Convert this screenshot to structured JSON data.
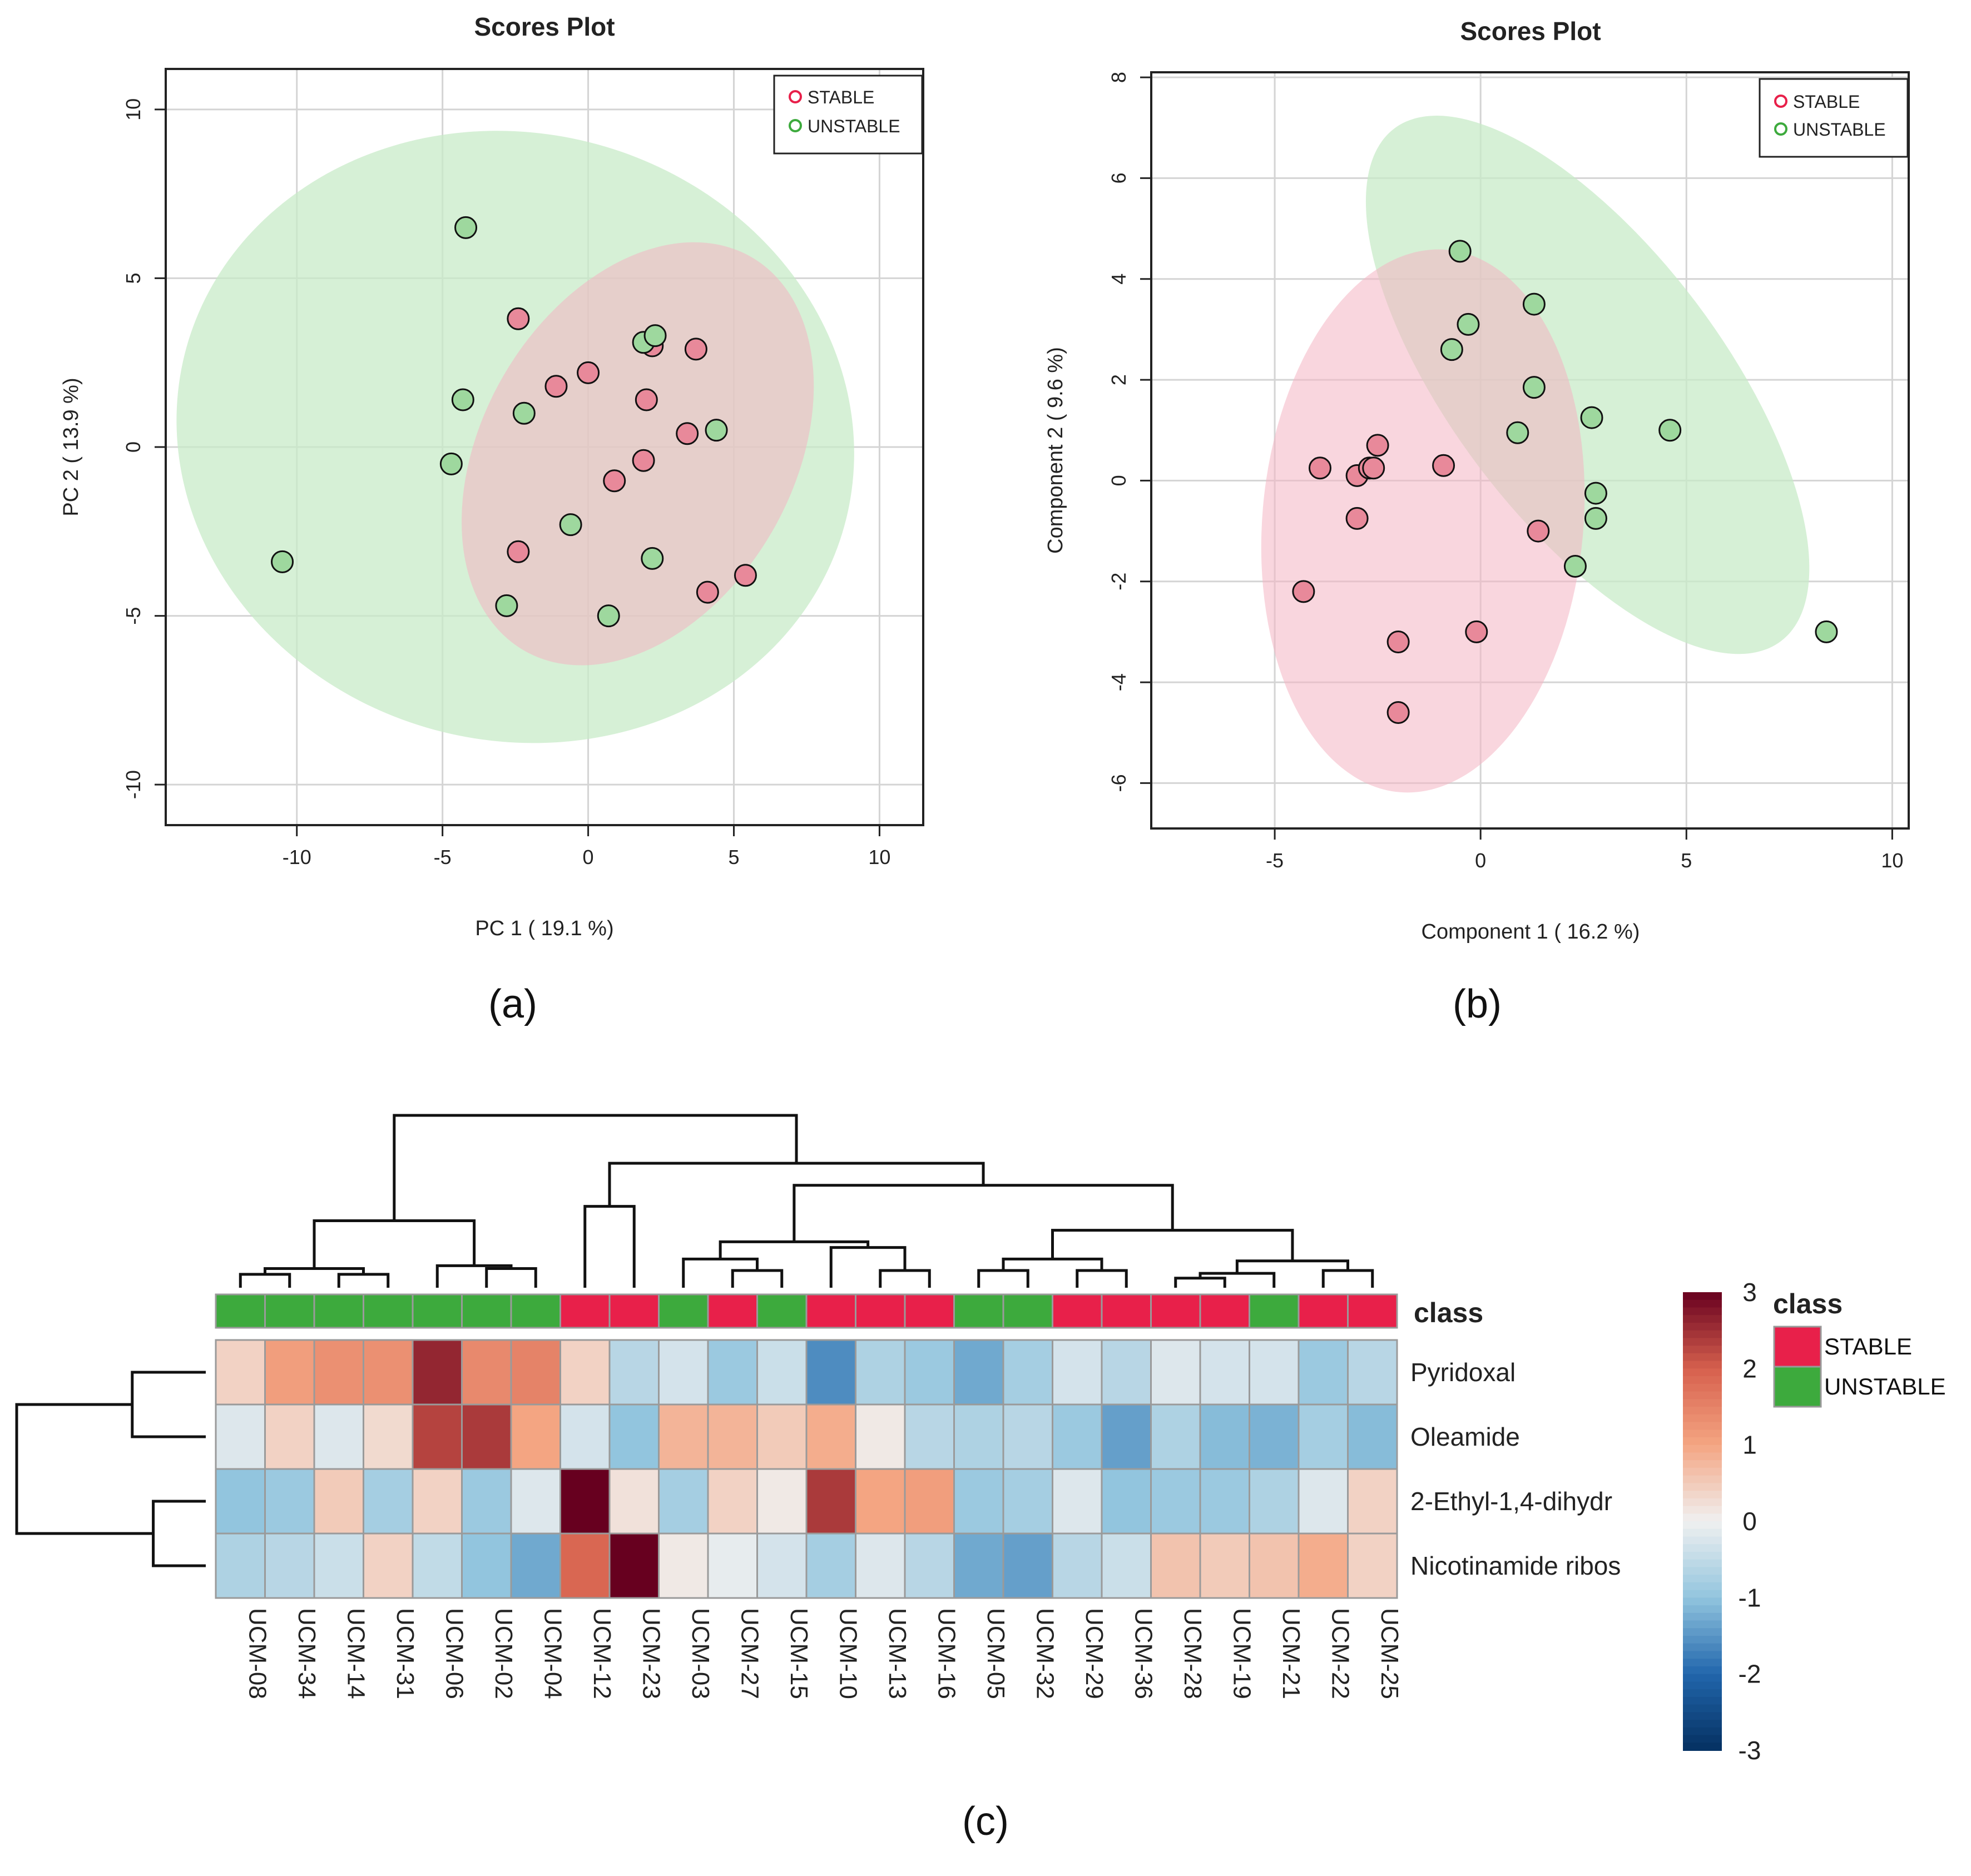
{
  "colors": {
    "stable": "#E8204A",
    "unstable": "#3DAA3D",
    "stable_point": "#E8899A",
    "unstable_point": "#9ED89E",
    "stable_ellipse": "#F4B4C2",
    "unstable_ellipse": "#C8EBC8",
    "overlap": "#D2C6B6"
  },
  "panel_labels": {
    "a": "(a)",
    "b": "(b)",
    "c": "(c)"
  },
  "chart_data": [
    {
      "id": "a",
      "type": "scatter",
      "title": "Scores Plot",
      "xlabel": "PC 1 ( 19.1 %)",
      "ylabel": "PC 2 ( 13.9 %)",
      "xlim": [
        -14.5,
        11.5
      ],
      "ylim": [
        -11.2,
        11.2
      ],
      "xticks": [
        -10,
        -5,
        0,
        5,
        10
      ],
      "yticks": [
        -10,
        -5,
        0,
        5,
        10
      ],
      "xtick_labels": [
        "-10",
        "-5",
        "0",
        "5",
        "10"
      ],
      "ytick_labels": [
        "-10",
        "-5",
        "0",
        "5",
        "10"
      ],
      "grid_x": [
        -10,
        -5,
        0,
        5,
        10
      ],
      "grid_y": [
        -10,
        -5,
        0,
        5,
        10
      ],
      "legend": {
        "position": "top-right",
        "entries": [
          "STABLE",
          "UNSTABLE"
        ]
      },
      "ellipses": [
        {
          "series": "UNSTABLE",
          "cx": -2.5,
          "cy": 0.3,
          "rx": 11.7,
          "ry": 9.0,
          "angle_deg": 14
        },
        {
          "series": "STABLE",
          "cx": 1.7,
          "cy": -0.2,
          "rx": 7.8,
          "ry": 4.6,
          "angle_deg": -60
        }
      ],
      "series": [
        {
          "name": "STABLE",
          "points": [
            [
              -2.4,
              3.8
            ],
            [
              -1.1,
              1.8
            ],
            [
              0,
              2.2
            ],
            [
              2.2,
              3.0
            ],
            [
              3.7,
              2.9
            ],
            [
              2.0,
              1.4
            ],
            [
              3.4,
              0.4
            ],
            [
              1.9,
              -0.4
            ],
            [
              0.9,
              -1.0
            ],
            [
              -2.4,
              -3.1
            ],
            [
              4.1,
              -4.3
            ],
            [
              5.4,
              -3.8
            ]
          ]
        },
        {
          "name": "UNSTABLE",
          "points": [
            [
              -4.2,
              6.5
            ],
            [
              -4.3,
              1.4
            ],
            [
              -2.2,
              1.0
            ],
            [
              -4.7,
              -0.5
            ],
            [
              -0.6,
              -2.3
            ],
            [
              -2.8,
              -4.7
            ],
            [
              0.7,
              -5.0
            ],
            [
              2.2,
              -3.3
            ],
            [
              1.9,
              3.1
            ],
            [
              2.3,
              3.3
            ],
            [
              4.4,
              0.5
            ],
            [
              -10.5,
              -3.4
            ]
          ]
        }
      ]
    },
    {
      "id": "b",
      "type": "scatter",
      "title": "Scores Plot",
      "xlabel": "Component 1 ( 16.2 %)",
      "ylabel": "Component 2 ( 9.6 %)",
      "xlim": [
        -8.0,
        10.4
      ],
      "ylim": [
        -6.9,
        8.1
      ],
      "xticks": [
        -5,
        0,
        5,
        10
      ],
      "yticks": [
        -6,
        -4,
        -2,
        0,
        2,
        4,
        6,
        8
      ],
      "xtick_labels": [
        "-5",
        "0",
        "5",
        "10"
      ],
      "ytick_labels": [
        "-6",
        "-4",
        "-2",
        "0",
        "2",
        "4",
        "6",
        "8"
      ],
      "grid_x": [
        -5,
        0,
        5,
        10
      ],
      "grid_y": [
        -6,
        -4,
        -2,
        0,
        2,
        4,
        6,
        8
      ],
      "legend": {
        "position": "top-right",
        "entries": [
          "STABLE",
          "UNSTABLE"
        ]
      },
      "ellipses": [
        {
          "series": "UNSTABLE",
          "cx": 2.6,
          "cy": 1.9,
          "rx": 7.8,
          "ry": 2.7,
          "angle_deg": 53
        },
        {
          "series": "STABLE",
          "cx": -1.4,
          "cy": -0.8,
          "rx": 3.9,
          "ry": 5.4,
          "angle_deg": 5
        }
      ],
      "series": [
        {
          "name": "STABLE",
          "points": [
            [
              -3.9,
              0.25
            ],
            [
              -3.0,
              0.1
            ],
            [
              -2.7,
              0.25
            ],
            [
              -2.6,
              0.25
            ],
            [
              -2.5,
              0.7
            ],
            [
              -0.9,
              0.3
            ],
            [
              -3.0,
              -0.75
            ],
            [
              1.4,
              -1.0
            ],
            [
              -4.3,
              -2.2
            ],
            [
              -2.0,
              -3.2
            ],
            [
              -0.1,
              -3.0
            ],
            [
              -2.0,
              -4.6
            ]
          ]
        },
        {
          "name": "UNSTABLE",
          "points": [
            [
              -0.5,
              4.55
            ],
            [
              1.3,
              3.5
            ],
            [
              -0.3,
              3.1
            ],
            [
              -0.7,
              2.6
            ],
            [
              1.3,
              1.85
            ],
            [
              2.7,
              1.25
            ],
            [
              0.9,
              0.95
            ],
            [
              4.6,
              1.0
            ],
            [
              2.8,
              -0.25
            ],
            [
              2.8,
              -0.75
            ],
            [
              2.3,
              -1.7
            ],
            [
              8.4,
              -3.0
            ]
          ]
        }
      ]
    },
    {
      "id": "c",
      "type": "heatmap",
      "class_header": "class",
      "legend_title": "class",
      "legend_entries": [
        "STABLE",
        "UNSTABLE"
      ],
      "colorbar_ticks": [
        "3",
        "2",
        "1",
        "0",
        "-1",
        "-2",
        "-3"
      ],
      "colorbar_range": [
        -3,
        3
      ],
      "rows": [
        "Pyridoxal",
        "Oleamide",
        "2-Ethyl-1,4-dihydr",
        "Nicotinamide ribos"
      ],
      "columns": [
        "UCM-08",
        "UCM-34",
        "UCM-14",
        "UCM-31",
        "UCM-06",
        "UCM-02",
        "UCM-04",
        "UCM-12",
        "UCM-23",
        "UCM-03",
        "UCM-27",
        "UCM-15",
        "UCM-10",
        "UCM-13",
        "UCM-16",
        "UCM-05",
        "UCM-32",
        "UCM-29",
        "UCM-36",
        "UCM-28",
        "UCM-19",
        "UCM-21",
        "UCM-22",
        "UCM-25"
      ],
      "column_class": [
        "UNSTABLE",
        "UNSTABLE",
        "UNSTABLE",
        "UNSTABLE",
        "UNSTABLE",
        "UNSTABLE",
        "UNSTABLE",
        "STABLE",
        "STABLE",
        "UNSTABLE",
        "STABLE",
        "UNSTABLE",
        "STABLE",
        "STABLE",
        "STABLE",
        "UNSTABLE",
        "UNSTABLE",
        "STABLE",
        "STABLE",
        "STABLE",
        "STABLE",
        "UNSTABLE",
        "STABLE",
        "STABLE"
      ],
      "values": [
        [
          0.4,
          1.1,
          1.3,
          1.3,
          2.6,
          1.4,
          1.5,
          0.4,
          -0.6,
          -0.3,
          -0.9,
          -0.4,
          -1.6,
          -0.7,
          -0.9,
          -1.3,
          -0.8,
          -0.3,
          -0.6,
          -0.2,
          -0.3,
          -0.3,
          -0.9,
          -0.6
        ],
        [
          -0.2,
          0.4,
          -0.2,
          0.3,
          2.3,
          2.4,
          1.0,
          -0.3,
          -1.0,
          0.8,
          0.8,
          0.5,
          0.9,
          0.1,
          -0.6,
          -0.7,
          -0.6,
          -0.9,
          -1.4,
          -0.7,
          -1.1,
          -1.2,
          -0.8,
          -1.1
        ],
        [
          -1.0,
          -0.9,
          0.5,
          -0.8,
          0.4,
          -0.9,
          -0.2,
          3.0,
          0.2,
          -0.8,
          0.4,
          0.1,
          2.4,
          1.0,
          1.1,
          -0.9,
          -0.8,
          -0.2,
          -1.0,
          -0.9,
          -0.9,
          -0.7,
          -0.2,
          0.4
        ],
        [
          -0.7,
          -0.6,
          -0.4,
          0.4,
          -0.5,
          -1.0,
          -1.3,
          1.9,
          3.2,
          0.1,
          -0.1,
          -0.3,
          -0.8,
          -0.2,
          -0.6,
          -1.3,
          -1.4,
          -0.6,
          -0.4,
          0.6,
          0.5,
          0.6,
          0.9,
          0.4
        ]
      ],
      "column_dendrogram": {
        "leaves": 24,
        "merges": [
          [
            0,
            1,
            0.28
          ],
          [
            2,
            3,
            0.28
          ],
          [
            24,
            25,
            0.4
          ],
          [
            5,
            6,
            0.4
          ],
          [
            4,
            27,
            0.46
          ],
          [
            26,
            28,
            1.4
          ],
          [
            7,
            8,
            1.7
          ],
          [
            10,
            11,
            0.36
          ],
          [
            9,
            31,
            0.6
          ],
          [
            13,
            14,
            0.36
          ],
          [
            12,
            33,
            0.84
          ],
          [
            32,
            34,
            0.96
          ],
          [
            15,
            16,
            0.36
          ],
          [
            17,
            18,
            0.36
          ],
          [
            36,
            37,
            0.6
          ],
          [
            19,
            20,
            0.2
          ],
          [
            21,
            39,
            0.3
          ],
          [
            22,
            23,
            0.36
          ],
          [
            40,
            41,
            0.56
          ],
          [
            38,
            42,
            1.2
          ],
          [
            35,
            43,
            2.14
          ],
          [
            30,
            44,
            2.6
          ],
          [
            29,
            45,
            3.6
          ]
        ]
      },
      "row_dendrogram": {
        "leaves": 4,
        "merges": [
          [
            0,
            1,
            1.4
          ],
          [
            2,
            3,
            1.0
          ],
          [
            4,
            5,
            3.6
          ]
        ]
      }
    }
  ]
}
